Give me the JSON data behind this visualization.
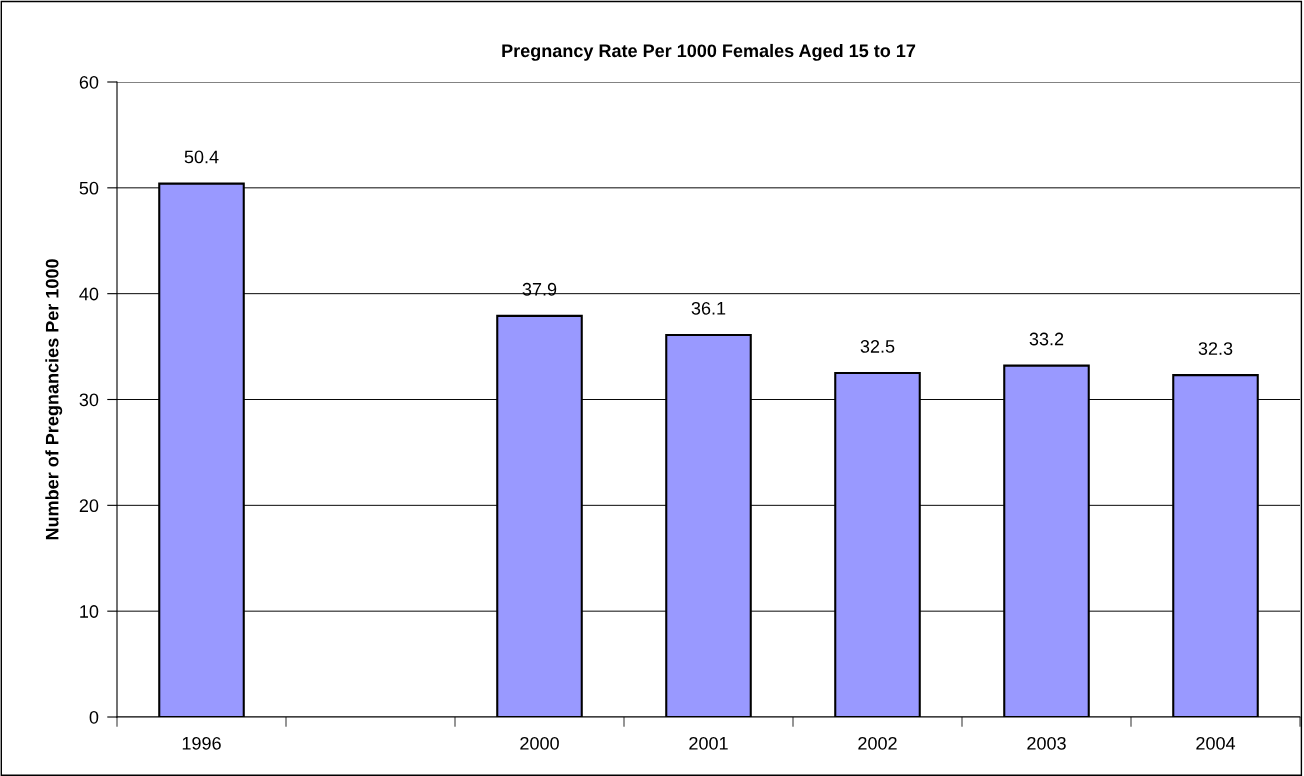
{
  "chart_data": {
    "type": "bar",
    "title": "Pregnancy Rate Per 1000 Females Aged 15 to 17",
    "ylabel": "Number of Pregnancies Per 1000",
    "categories": [
      "1996",
      null,
      "2000",
      "2001",
      "2002",
      "2003",
      "2004"
    ],
    "values": [
      50.4,
      null,
      37.9,
      36.1,
      32.5,
      33.2,
      32.3
    ],
    "color": "#9999ff",
    "ylim": [
      0,
      60
    ],
    "yticks": [
      0,
      10,
      20,
      30,
      40,
      50,
      60
    ],
    "grid": "y",
    "data_labels": true,
    "legend": false
  }
}
